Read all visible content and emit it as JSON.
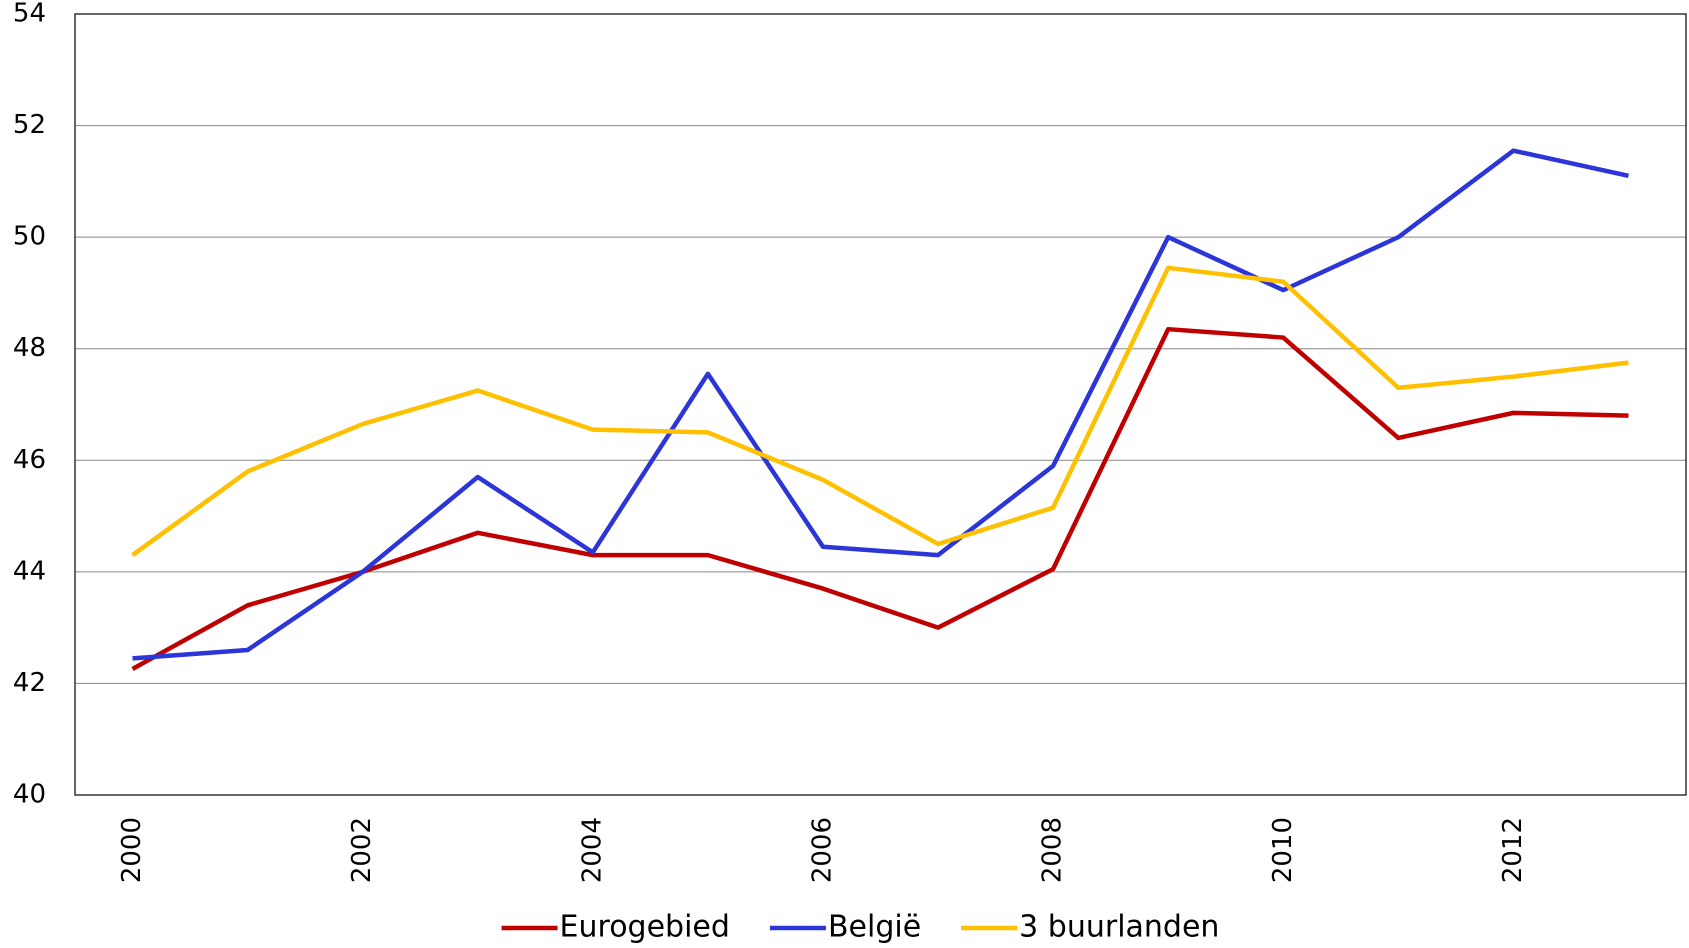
{
  "chart_data": {
    "type": "line",
    "categories": [
      "2000",
      null,
      "2002",
      null,
      "2004",
      null,
      "2006",
      null,
      "2008",
      null,
      "2010",
      null,
      "2012",
      null
    ],
    "series": [
      {
        "name": "Eurogebied",
        "color": "#c00000",
        "values": [
          42.26,
          43.4,
          44.0,
          44.7,
          44.3,
          44.3,
          43.7,
          43.0,
          44.05,
          48.35,
          48.2,
          46.4,
          46.85,
          46.8
        ]
      },
      {
        "name": "België",
        "color": "#2b35d8",
        "values": [
          42.45,
          42.6,
          44.0,
          45.7,
          44.35,
          47.55,
          44.45,
          44.3,
          45.9,
          50.0,
          49.05,
          50.0,
          51.55,
          51.1
        ]
      },
      {
        "name": "3 buurlanden",
        "color": "#ffc000",
        "values": [
          44.3,
          45.8,
          46.65,
          47.25,
          46.55,
          46.5,
          45.65,
          44.5,
          45.15,
          49.45,
          49.2,
          47.3,
          47.5,
          47.75
        ]
      }
    ],
    "ylim": [
      40,
      54
    ],
    "yticks": [
      40,
      42,
      44,
      46,
      48,
      50,
      52,
      54
    ],
    "grid": true,
    "legend": "bottom"
  }
}
